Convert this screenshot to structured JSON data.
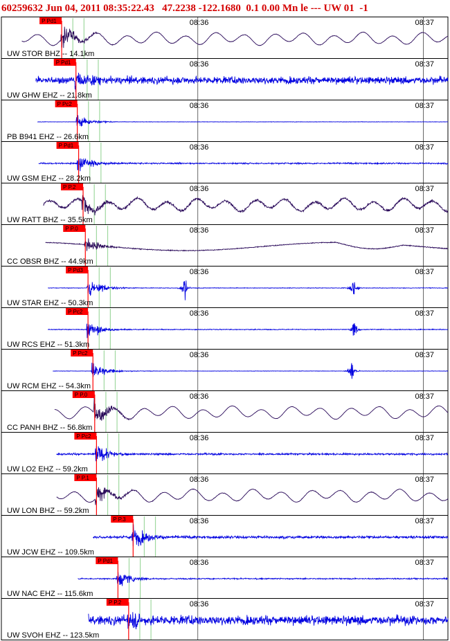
{
  "header": {
    "event_id": "60259632",
    "datetime": "Jun 04, 2011 08:35:22.43",
    "latitude": "47.2238",
    "longitude": "-122.1680",
    "depth": "0.1",
    "magnitude": "0.00",
    "mag_type": "Mn",
    "event_type": "le",
    "separator": "---",
    "network_source": "UW",
    "version": "01",
    "extra": "-1"
  },
  "colors": {
    "border": "#000000",
    "pick_marker": "#ff0000",
    "gridline_green": "#9fd89f",
    "trace_blue": "#0000e0",
    "trace_purple": "#2a0a5a"
  },
  "chart_data": {
    "type": "line",
    "title": "60259632 Jun 04, 2011 08:35:22.43   47.2238 -122.1680  0.1 0.00 Mn le --- UW 01  -1",
    "time_markers": [
      "08:36",
      "08:37"
    ],
    "stations": [
      {
        "name": "UW STOR BHZ -- 14.1km",
        "pick": "P Pd1",
        "color": "purple",
        "kind": "long",
        "pick_x": 0.135,
        "noise": 0.05
      },
      {
        "name": "UW GHW EHZ -- 21.8km",
        "pick": "P Pd1",
        "color": "blue",
        "kind": "noisy",
        "pick_x": 0.167,
        "noise": 0.35
      },
      {
        "name": "PB B941 EHZ -- 26.6km",
        "pick": "P Pc2",
        "color": "blue",
        "kind": "flat",
        "pick_x": 0.17,
        "noise": 0.02
      },
      {
        "name": "UW GSM EHZ -- 28.2km",
        "pick": "P Pd1",
        "color": "blue",
        "kind": "quiet",
        "pick_x": 0.173,
        "noise": 0.07
      },
      {
        "name": "UW RATT BHZ -- 35.5km",
        "pick": "P P.2",
        "color": "purple",
        "kind": "long",
        "pick_x": 0.183,
        "noise": 0.25
      },
      {
        "name": "CC OBSR BHZ -- 44.9km",
        "pick": "P P.0",
        "color": "purple",
        "kind": "drift",
        "pick_x": 0.188,
        "noise": 0.05
      },
      {
        "name": "UW STAR EHZ -- 50.3km",
        "pick": "P Pd3",
        "color": "blue",
        "kind": "spikes",
        "pick_x": 0.194,
        "noise": 0.03
      },
      {
        "name": "UW RCS EHZ -- 51.3km",
        "pick": "P Pc2",
        "color": "blue",
        "kind": "spikes2",
        "pick_x": 0.194,
        "noise": 0.04
      },
      {
        "name": "UW RCM EHZ -- 54.3km",
        "pick": "P Pc2",
        "color": "blue",
        "kind": "spikes3",
        "pick_x": 0.205,
        "noise": 0.02
      },
      {
        "name": "CC PANH BHZ -- 56.8km",
        "pick": "P P.0",
        "color": "purple",
        "kind": "long",
        "pick_x": 0.209,
        "noise": 0.03
      },
      {
        "name": "UW LO2 EHZ -- 59.2km",
        "pick": "P Pc2",
        "color": "blue",
        "kind": "quiet",
        "pick_x": 0.213,
        "noise": 0.09
      },
      {
        "name": "UW LON BHZ -- 59.2km",
        "pick": "P P.1",
        "color": "purple",
        "kind": "long",
        "pick_x": 0.213,
        "noise": 0.05
      },
      {
        "name": "UW JCW EHZ -- 109.5km",
        "pick": "P P.3",
        "color": "blue",
        "kind": "noisy",
        "pick_x": 0.295,
        "noise": 0.13
      },
      {
        "name": "UW NAC EHZ -- 115.6km",
        "pick": "P Pd1",
        "color": "blue",
        "kind": "quiet",
        "pick_x": 0.261,
        "noise": 0.06
      },
      {
        "name": "UW SVOH EHZ -- 123.5km",
        "pick": "P P.2",
        "color": "blue",
        "kind": "noisy",
        "pick_x": 0.285,
        "noise": 0.45
      }
    ]
  }
}
